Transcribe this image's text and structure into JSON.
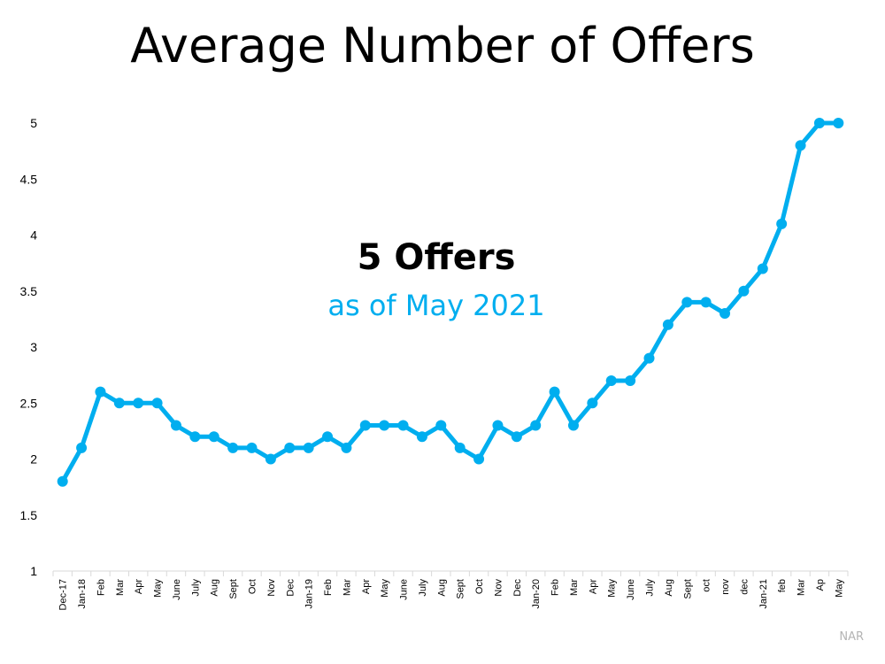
{
  "chart_data": {
    "type": "line",
    "title": "Average Number of Offers",
    "xlabel": "",
    "ylabel": "",
    "ylim": [
      1,
      5
    ],
    "yticks": [
      "1",
      "1.5",
      "2",
      "2.5",
      "3",
      "3.5",
      "4",
      "4.5",
      "5"
    ],
    "grid": false,
    "categories": [
      "Dec-17",
      "Jan-18",
      "Feb",
      "Mar",
      "Apr",
      "May",
      "June",
      "July",
      "Aug",
      "Sept",
      "Oct",
      "Nov",
      "Dec",
      "Jan-19",
      "Feb",
      "Mar",
      "Apr",
      "May",
      "June",
      "July",
      "Aug",
      "Sept",
      "Oct",
      "Nov",
      "Dec",
      "Jan-20",
      "Feb",
      "Mar",
      "Apr",
      "May",
      "June",
      "July",
      "Aug",
      "Sept",
      "oct",
      "nov",
      "dec",
      "Jan-21",
      "feb",
      "Mar",
      "Ap",
      "May"
    ],
    "series": [
      {
        "values": [
          1.8,
          2.1,
          2.6,
          2.5,
          2.5,
          2.5,
          2.3,
          2.2,
          2.2,
          2.1,
          2.1,
          2.0,
          2.1,
          2.1,
          2.2,
          2.1,
          2.3,
          2.3,
          2.3,
          2.2,
          2.3,
          2.1,
          2.0,
          2.3,
          2.2,
          2.3,
          2.6,
          2.3,
          2.5,
          2.7,
          2.7,
          2.9,
          3.2,
          3.4,
          3.4,
          3.3,
          3.5,
          3.7,
          4.1,
          4.8,
          5.0,
          5.0
        ]
      }
    ],
    "annotation": {
      "headline": "5 Offers",
      "subline": "as of May 2021"
    },
    "source": "NAR"
  },
  "colors": {
    "line": "#00aeef",
    "axis": "#d9d9d9",
    "title": "#000000",
    "source": "#b4b4b4"
  }
}
